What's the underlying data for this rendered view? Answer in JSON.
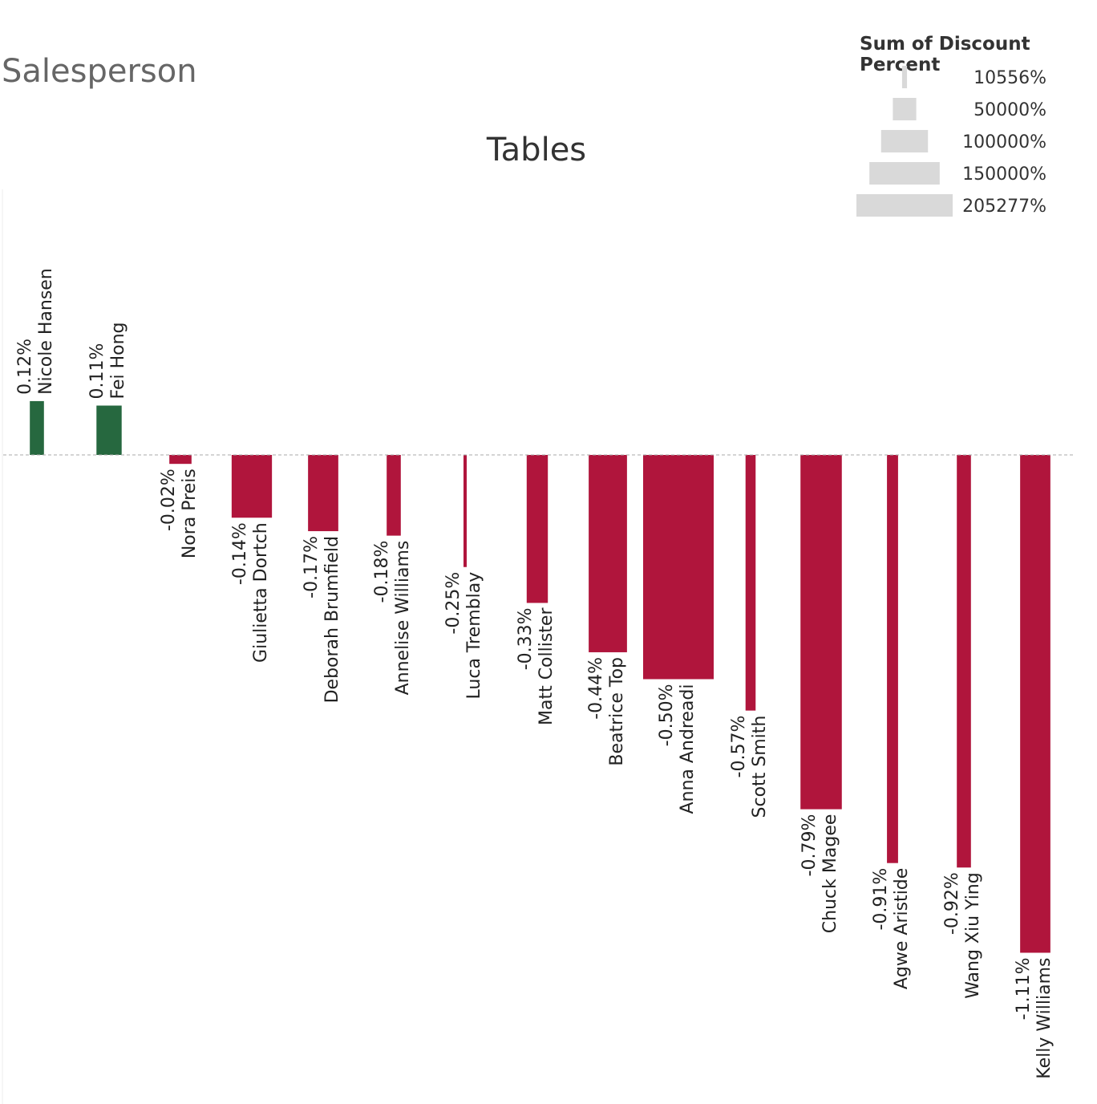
{
  "header": {
    "title": "Salesperson"
  },
  "chart_data": {
    "type": "bar",
    "title": "Tables",
    "value_format": "percent",
    "categories": [
      "Nicole Hansen",
      "Fei Hong",
      "Nora Preis",
      "Giulietta Dortch",
      "Deborah Brumfield",
      "Annelise Williams",
      "Luca Tremblay",
      "Matt Collister",
      "Beatrice Top",
      "Anna Andreadi",
      "Scott Smith",
      "Chuck Magee",
      "Agwe Aristide",
      "Wang Xiu Ying",
      "Kelly Williams"
    ],
    "values": [
      0.12,
      0.11,
      -0.02,
      -0.14,
      -0.17,
      -0.18,
      -0.25,
      -0.33,
      -0.44,
      -0.5,
      -0.57,
      -0.79,
      -0.91,
      -0.92,
      -1.11
    ],
    "labels": [
      "0.12%",
      "0.11%",
      "-0.02%",
      "-0.14%",
      "-0.17%",
      "-0.18%",
      "-0.25%",
      "-0.33%",
      "-0.44%",
      "-0.50%",
      "-0.57%",
      "-0.79%",
      "-0.91%",
      "-0.92%",
      "-1.11%"
    ],
    "bar_width_values": [
      14000,
      25000,
      22000,
      40000,
      30000,
      14000,
      2500,
      21000,
      38000,
      70000,
      10000,
      41000,
      11000,
      14000,
      30000
    ],
    "positive_color": "#26683f",
    "negative_color": "#b0153c",
    "zero_line_color": "#aaaaaa",
    "size_legend": {
      "title": "Sum of Discount Percent",
      "items": [
        {
          "label": "10556%",
          "value": 10556
        },
        {
          "label": "50000%",
          "value": 50000
        },
        {
          "label": "100000%",
          "value": 100000
        },
        {
          "label": "150000%",
          "value": 150000
        },
        {
          "label": "205277%",
          "value": 205277
        }
      ],
      "color": "#d9d9d9"
    }
  }
}
